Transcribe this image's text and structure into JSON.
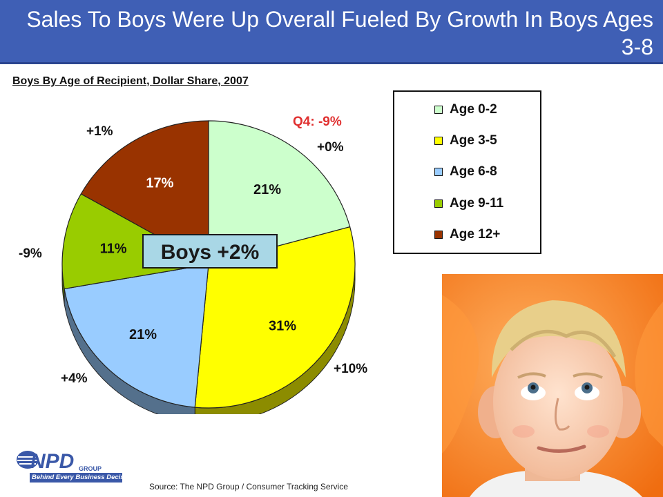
{
  "header": {
    "title": "Sales To Boys Were Up Overall Fueled By Growth In Boys Ages 3-8"
  },
  "chart_data": {
    "type": "pie",
    "title": "Boys By Age of Recipient, Dollar Share, 2007",
    "slices": [
      {
        "label": "Age 0-2",
        "value": 21,
        "value_label": "21%",
        "growth": "+0%",
        "color": "#ccffcc"
      },
      {
        "label": "Age 3-5",
        "value": 31,
        "value_label": "31%",
        "growth": "+10%",
        "color": "#ffff00"
      },
      {
        "label": "Age 6-8",
        "value": 21,
        "value_label": "21%",
        "growth": "+4%",
        "color": "#99ccff"
      },
      {
        "label": "Age 9-11",
        "value": 11,
        "value_label": "11%",
        "growth": "-9%",
        "color": "#99cc00"
      },
      {
        "label": "Age 12+",
        "value": 17,
        "value_label": "17%",
        "growth": "+1%",
        "color": "#993300"
      }
    ],
    "legend_placement": "right",
    "annotations": {
      "q4": "Q4: -9%",
      "total": "Boys +2%"
    }
  },
  "legend": {
    "items": [
      "Age 0-2",
      "Age 3-5",
      "Age 6-8",
      "Age 9-11",
      "Age 12+"
    ]
  },
  "footer": {
    "logo_text": "NPD",
    "logo_group": "GROUP",
    "logo_tagline": "Behind Every Business Decision",
    "source": "Source:  The NPD Group / Consumer Tracking Service"
  },
  "photo": {
    "icon": "boy-photo"
  }
}
